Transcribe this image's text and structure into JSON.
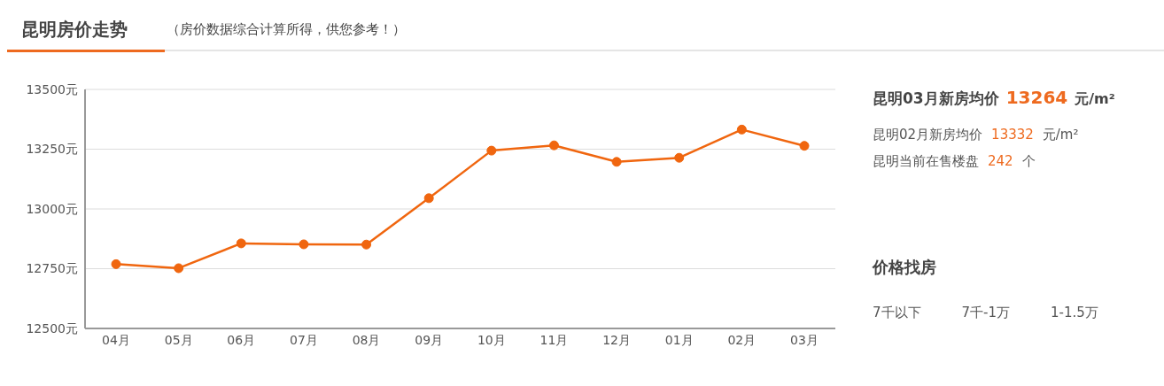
{
  "chart_data": [
    {
      "type": "line",
      "title": "昆明房价走势",
      "subtitle": "（房价数据综合计算所得，供您参考！）",
      "categories": [
        "04月",
        "05月",
        "06月",
        "07月",
        "08月",
        "09月",
        "10月",
        "11月",
        "12月",
        "01月",
        "02月",
        "03月"
      ],
      "series": [
        {
          "color": "#f0660f",
          "values": [
            12769,
            12752,
            12856,
            12852,
            12851,
            13045,
            13244,
            13266,
            13197,
            13214,
            13332,
            13264
          ]
        }
      ],
      "ylim": [
        12500,
        13500
      ],
      "yticks": [
        {
          "value": 12500,
          "label": "12500元"
        },
        {
          "value": 12750,
          "label": "12750元"
        },
        {
          "value": 13000,
          "label": "13000元"
        },
        {
          "value": 13250,
          "label": "13250元"
        },
        {
          "value": 13500,
          "label": "13500元"
        }
      ],
      "grid": "y",
      "marker": "circle",
      "line_style": "solid",
      "legend": false
    },
    {
      "type": "other",
      "annotations": [
        "昆明03月新房均价",
        "13264",
        "元/m²",
        "昆明02月新房均价",
        "13332",
        "元/m²",
        "昆明当前在售楼盘",
        "242",
        "个",
        "价格找房",
        "7千以下",
        "7千-1万",
        "1-1.5万"
      ]
    }
  ]
}
